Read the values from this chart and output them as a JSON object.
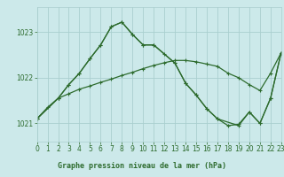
{
  "title": "Graphe pression niveau de la mer (hPa)",
  "bg_color": "#cce9ea",
  "plot_bg_color": "#cce9ea",
  "bottom_bar_color": "#9ecfcf",
  "grid_color": "#aacfcf",
  "line_color": "#2d6b2d",
  "xlim": [
    0,
    23
  ],
  "ylim": [
    1020.6,
    1023.55
  ],
  "yticks": [
    1021,
    1022,
    1023
  ],
  "xticks": [
    0,
    1,
    2,
    3,
    4,
    5,
    6,
    7,
    8,
    9,
    10,
    11,
    12,
    13,
    14,
    15,
    16,
    17,
    18,
    19,
    20,
    21,
    22,
    23
  ],
  "line1_x": [
    0,
    1,
    2,
    3,
    4,
    5,
    6,
    7,
    8,
    9,
    10,
    11,
    12,
    13,
    14,
    15,
    16,
    17,
    18,
    19,
    20,
    21,
    22,
    23
  ],
  "line1_y": [
    1021.1,
    1021.35,
    1021.55,
    1021.65,
    1021.75,
    1021.82,
    1021.9,
    1021.97,
    1022.05,
    1022.12,
    1022.2,
    1022.27,
    1022.33,
    1022.38,
    1022.38,
    1022.35,
    1022.3,
    1022.25,
    1022.1,
    1022.0,
    1021.85,
    1021.72,
    1022.1,
    1022.55
  ],
  "line2_x": [
    0,
    2,
    3,
    4,
    5,
    6,
    7,
    8,
    9,
    10,
    11,
    13,
    14,
    15,
    16,
    17,
    19,
    20,
    21,
    22,
    23
  ],
  "line2_y": [
    1021.1,
    1021.55,
    1021.85,
    1022.1,
    1022.42,
    1022.72,
    1023.12,
    1023.22,
    1022.95,
    1022.72,
    1022.72,
    1022.32,
    1021.88,
    1021.62,
    1021.32,
    1021.1,
    1020.95,
    1021.25,
    1021.0,
    1021.55,
    1022.55
  ],
  "line3_x": [
    0,
    2,
    3,
    4,
    5,
    6,
    7,
    8,
    9,
    10,
    11,
    12,
    13,
    14,
    15,
    16,
    17,
    18,
    19,
    20,
    21,
    22,
    23
  ],
  "line3_y": [
    1021.1,
    1021.55,
    1021.85,
    1022.1,
    1022.42,
    1022.72,
    1023.12,
    1023.22,
    1022.95,
    1022.72,
    1022.72,
    1022.52,
    1022.32,
    1021.88,
    1021.62,
    1021.32,
    1021.1,
    1020.95,
    1020.98,
    1021.25,
    1021.0,
    1021.55,
    1022.55
  ]
}
